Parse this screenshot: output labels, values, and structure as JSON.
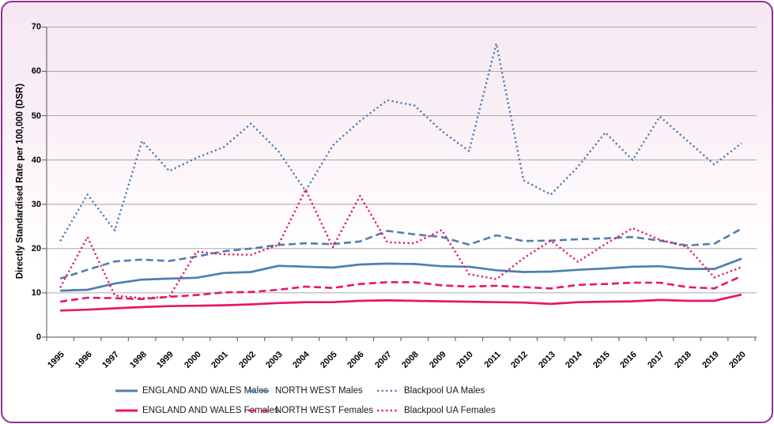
{
  "chart_data": {
    "type": "line",
    "title": "",
    "xlabel": "",
    "ylabel": "Directly Standardised Rate per 100,000  (DSR)",
    "ylim": [
      0,
      70
    ],
    "yticks": [
      0,
      10,
      20,
      30,
      40,
      50,
      60,
      70
    ],
    "grid": true,
    "legend_position": "bottom",
    "x": [
      1995,
      1996,
      1997,
      1998,
      1999,
      2000,
      2001,
      2002,
      2003,
      2004,
      2005,
      2006,
      2007,
      2008,
      2009,
      2010,
      2011,
      2012,
      2013,
      2014,
      2015,
      2016,
      2017,
      2018,
      2019,
      2020
    ],
    "series": [
      {
        "name": "ENGLAND AND WALES Males",
        "color": "#4e7fb1",
        "style": "solid",
        "values": [
          10.5,
          10.7,
          12.1,
          13.0,
          13.2,
          13.4,
          14.5,
          14.7,
          16.1,
          15.9,
          15.7,
          16.4,
          16.6,
          16.5,
          16.0,
          15.9,
          15.1,
          14.7,
          14.8,
          15.2,
          15.5,
          15.9,
          16.0,
          15.4,
          15.4,
          17.7
        ]
      },
      {
        "name": "NORTH WEST Males",
        "color": "#4e7fb1",
        "style": "dashed",
        "values": [
          13.2,
          15.2,
          17.1,
          17.5,
          17.2,
          18.2,
          19.4,
          20.0,
          20.8,
          21.2,
          21.0,
          21.6,
          24.0,
          23.2,
          22.6,
          20.9,
          23.0,
          21.7,
          21.8,
          22.1,
          22.3,
          22.6,
          21.8,
          20.7,
          21.1,
          24.5
        ]
      },
      {
        "name": "Blackpool UA Males",
        "color": "#4e7fb1",
        "style": "dotted",
        "values": [
          21.7,
          32.2,
          24.1,
          44.3,
          37.5,
          40.5,
          42.9,
          48.2,
          42.0,
          33.0,
          43.3,
          48.8,
          53.5,
          52.3,
          46.5,
          42.0,
          66.3,
          35.4,
          32.2,
          38.5,
          46.2,
          40.0,
          49.8,
          44.4,
          39.0,
          43.8
        ]
      },
      {
        "name": "ENGLAND AND WALES Females",
        "color": "#e8156b",
        "style": "solid",
        "values": [
          6.0,
          6.2,
          6.5,
          6.8,
          7.0,
          7.1,
          7.2,
          7.4,
          7.7,
          7.9,
          7.9,
          8.2,
          8.3,
          8.2,
          8.1,
          8.0,
          7.9,
          7.8,
          7.5,
          7.9,
          8.0,
          8.1,
          8.4,
          8.2,
          8.2,
          9.6
        ]
      },
      {
        "name": "NORTH WEST Females",
        "color": "#e8156b",
        "style": "dashed",
        "values": [
          8.0,
          8.9,
          8.8,
          8.6,
          9.1,
          9.5,
          10.1,
          10.2,
          10.7,
          11.4,
          11.1,
          12.0,
          12.4,
          12.4,
          11.7,
          11.4,
          11.6,
          11.3,
          11.0,
          11.8,
          12.0,
          12.3,
          12.3,
          11.3,
          11.0,
          13.8
        ]
      },
      {
        "name": "Blackpool UA Females",
        "color": "#e8156b",
        "style": "dotted",
        "values": [
          11.2,
          22.6,
          9.4,
          8.8,
          9.1,
          19.3,
          18.7,
          18.6,
          20.8,
          33.3,
          20.3,
          31.9,
          21.4,
          21.2,
          24.2,
          14.2,
          13.1,
          17.8,
          21.8,
          17.0,
          21.0,
          24.6,
          22.0,
          20.4,
          13.5,
          15.8
        ]
      }
    ],
    "axis_colors": {
      "gridline": "#a6a6a6",
      "axis_line": "#6e6e6e",
      "tick_text": "#000000"
    },
    "frame_border_color": "#8e3190"
  },
  "chart": {
    "y_axis_title": "Directly Standardised Rate per 100,000  (DSR)"
  }
}
